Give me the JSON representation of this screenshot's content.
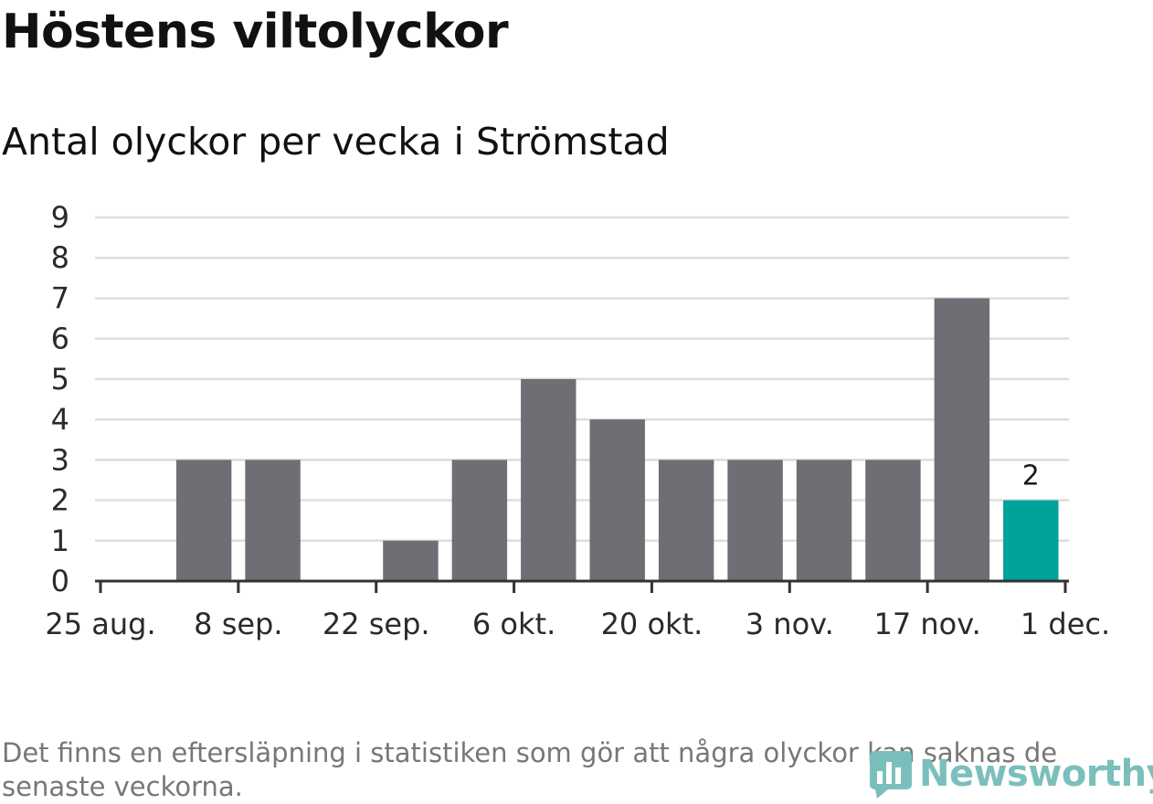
{
  "title": "Höstens viltolyckor",
  "subtitle": "Antal olyckor per vecka i Strömstad",
  "footnote": "Det finns en eftersläpning i statistiken som gör att några olyckor kan saknas de senaste veckorna.",
  "brand": {
    "name": "Newsworthy",
    "icon": "newsworthy-logo-icon",
    "color": "#7bbfbd"
  },
  "colors": {
    "bar": "#6f6e74",
    "highlight": "#00a39a",
    "grid": "#dddddd",
    "axis": "#333333"
  },
  "chart_data": {
    "type": "bar",
    "title": "Höstens viltolyckor",
    "subtitle": "Antal olyckor per vecka i Strömstad",
    "xlabel": "",
    "ylabel": "",
    "ylim": [
      0,
      9
    ],
    "yticks": [
      0,
      1,
      2,
      3,
      4,
      5,
      6,
      7,
      8,
      9
    ],
    "grid": true,
    "x_day_range": [
      0,
      98
    ],
    "xticks": [
      {
        "label": "25 aug.",
        "day": 0
      },
      {
        "label": "8 sep.",
        "day": 14
      },
      {
        "label": "22 sep.",
        "day": 28
      },
      {
        "label": "6 okt.",
        "day": 42
      },
      {
        "label": "20 okt.",
        "day": 56
      },
      {
        "label": "3 nov.",
        "day": 70
      },
      {
        "label": "17 nov.",
        "day": 84
      },
      {
        "label": "1 dec.",
        "day": 98
      }
    ],
    "week_start_days": [
      0,
      7,
      14,
      21,
      28,
      35,
      42,
      49,
      56,
      63,
      70,
      77,
      84,
      91
    ],
    "values": [
      0,
      3,
      3,
      0,
      1,
      3,
      5,
      4,
      3,
      3,
      3,
      3,
      7,
      2
    ],
    "highlight_index": 13,
    "data_labels": [
      {
        "index": 13,
        "text": "2"
      }
    ]
  }
}
